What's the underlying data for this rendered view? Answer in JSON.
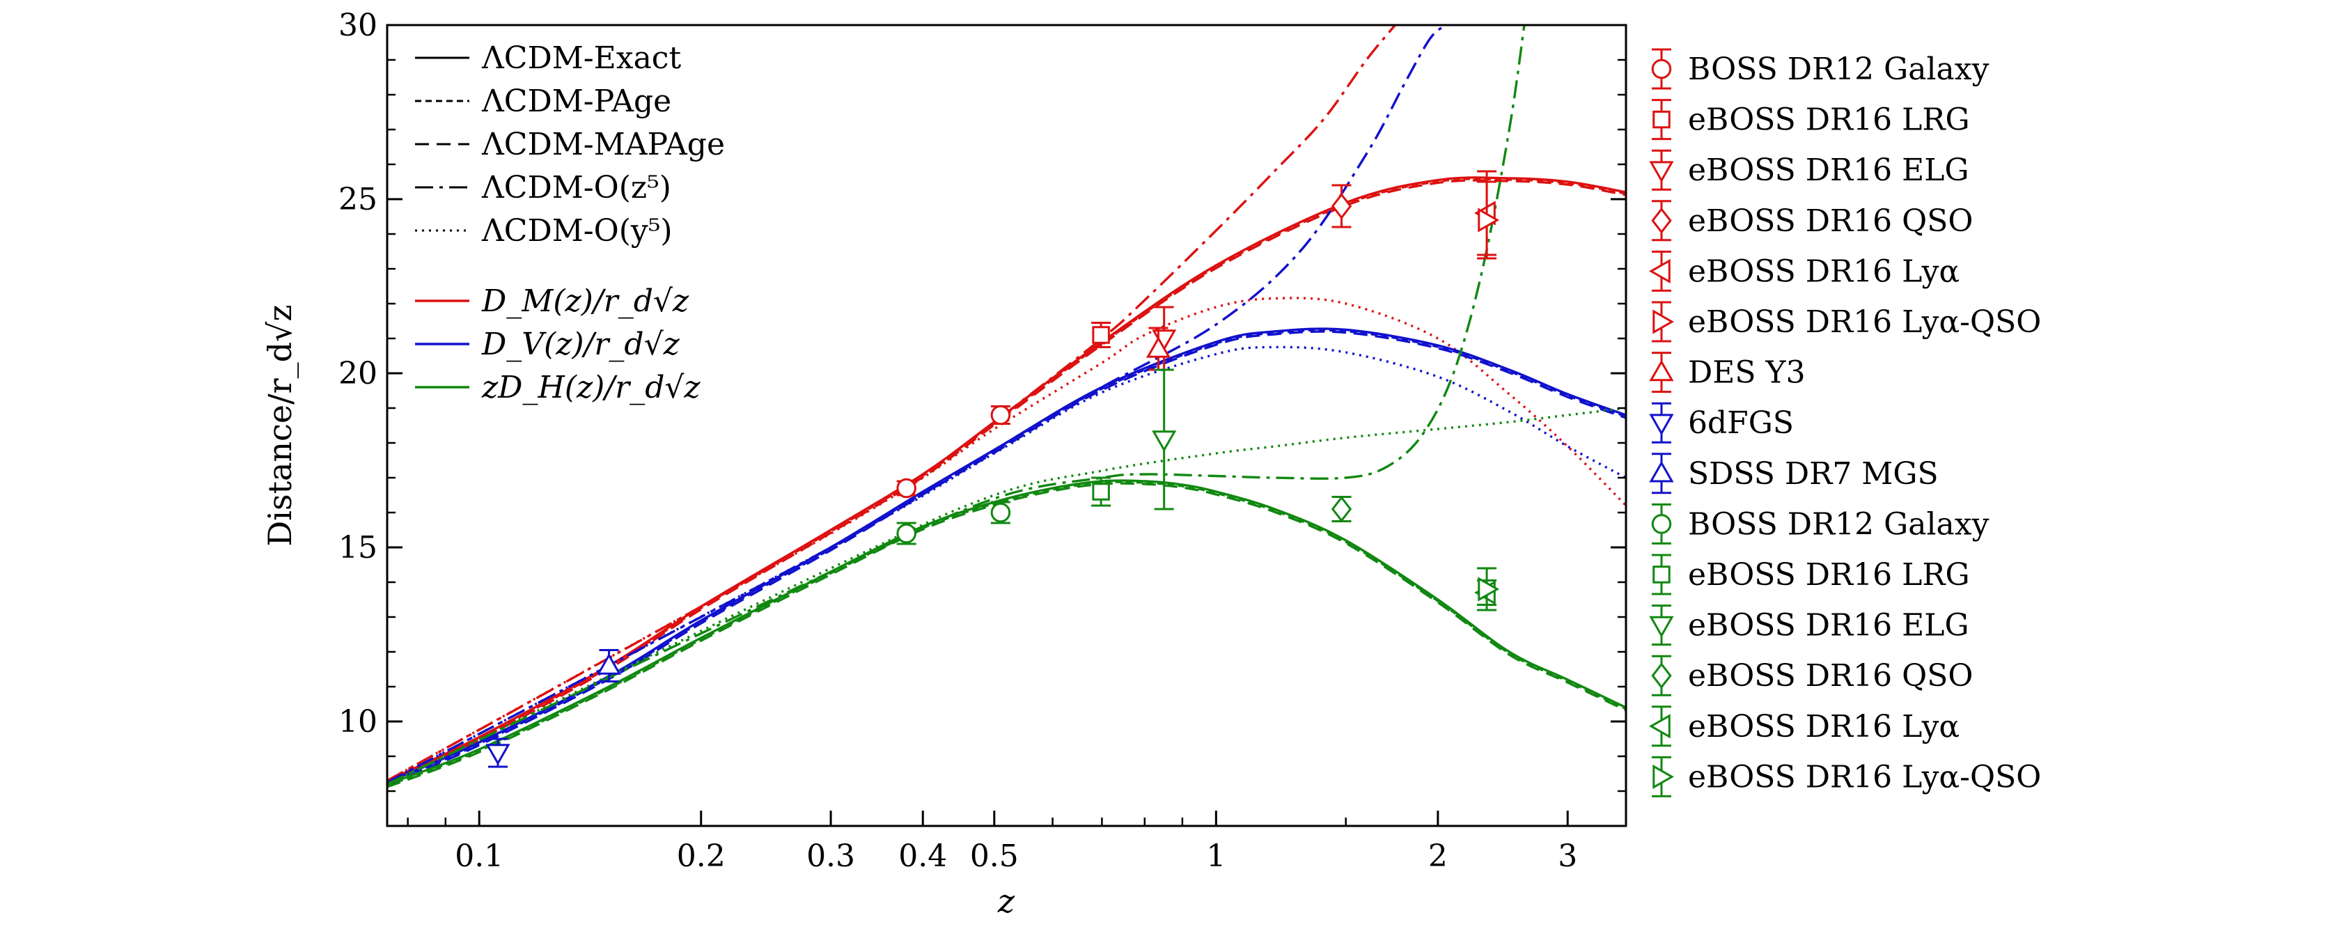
{
  "chart_data": {
    "type": "line",
    "x_scale": "log",
    "xlim": [
      0.075,
      3.6
    ],
    "ylim": [
      7,
      30
    ],
    "xlabel": "z",
    "ylabel": "Distance/r_d√z",
    "grid": false,
    "x_ticks": [
      {
        "value": 0.1,
        "label": "0.1"
      },
      {
        "value": 0.2,
        "label": "0.2"
      },
      {
        "value": 0.3,
        "label": "0.3"
      },
      {
        "value": 0.4,
        "label": "0.4"
      },
      {
        "value": 0.5,
        "label": "0.5"
      },
      {
        "value": 1,
        "label": "1"
      },
      {
        "value": 2,
        "label": "2"
      },
      {
        "value": 3,
        "label": "3"
      }
    ],
    "y_ticks": [
      {
        "value": 10,
        "label": "10"
      },
      {
        "value": 15,
        "label": "15"
      },
      {
        "value": 20,
        "label": "20"
      },
      {
        "value": 25,
        "label": "25"
      },
      {
        "value": 30,
        "label": "30"
      }
    ],
    "colors": {
      "DM": "#dd1111",
      "DV": "#1111cc",
      "DH": "#118811"
    },
    "line_style_legend": [
      {
        "label": "ΛCDM-Exact",
        "dash": "solid"
      },
      {
        "label": "ΛCDM-PAge",
        "dash": "fine-dash"
      },
      {
        "label": "ΛCDM-MAPAge",
        "dash": "dash"
      },
      {
        "label": "ΛCDM-O(z⁵)",
        "dash": "dash-dot"
      },
      {
        "label": "ΛCDM-O(y⁵)",
        "dash": "dot"
      }
    ],
    "quantity_legend": [
      {
        "key": "DM",
        "label": "D_M(z)/r_d√z"
      },
      {
        "key": "DV",
        "label": "D_V(z)/r_d√z"
      },
      {
        "key": "DH",
        "label": "zD_H(z)/r_d√z"
      }
    ],
    "series": [
      {
        "quantity": "DM",
        "model": "exact",
        "x": [
          0.075,
          0.1,
          0.15,
          0.2,
          0.3,
          0.4,
          0.5,
          0.7,
          1.0,
          1.5,
          2.0,
          2.5,
          3.0,
          3.6
        ],
        "y": [
          8.3,
          9.55,
          11.6,
          13.3,
          15.5,
          17.1,
          18.6,
          20.9,
          23.1,
          24.9,
          25.55,
          25.6,
          25.5,
          25.2
        ]
      },
      {
        "quantity": "DM",
        "model": "order-z5",
        "x": [
          0.075,
          0.2,
          0.3,
          0.4,
          0.5,
          0.7,
          0.8,
          1.0,
          1.2,
          1.4,
          1.6,
          1.75
        ],
        "y": [
          8.3,
          13.3,
          15.5,
          17.1,
          18.6,
          21.0,
          22.1,
          24.1,
          25.8,
          27.3,
          29.0,
          30.0
        ]
      },
      {
        "quantity": "DM",
        "model": "order-y5",
        "x": [
          0.075,
          0.2,
          0.3,
          0.4,
          0.5,
          0.7,
          0.8,
          1.0,
          1.2,
          1.5,
          2.0,
          2.5,
          3.0,
          3.6
        ],
        "y": [
          8.3,
          13.3,
          15.4,
          17.0,
          18.4,
          20.3,
          21.1,
          21.9,
          22.15,
          22.0,
          21.0,
          19.4,
          17.9,
          16.2
        ]
      },
      {
        "quantity": "DV",
        "model": "exact",
        "x": [
          0.075,
          0.1,
          0.15,
          0.2,
          0.3,
          0.4,
          0.5,
          0.7,
          1.0,
          1.2,
          1.5,
          2.0,
          2.5,
          3.0,
          3.6
        ],
        "y": [
          8.25,
          9.4,
          11.3,
          12.9,
          15.0,
          16.6,
          17.8,
          19.6,
          20.9,
          21.2,
          21.25,
          20.8,
          20.1,
          19.4,
          18.8
        ]
      },
      {
        "quantity": "DV",
        "model": "order-z5",
        "x": [
          0.075,
          0.3,
          0.5,
          0.7,
          1.0,
          1.3,
          1.6,
          1.8,
          1.95,
          2.05
        ],
        "y": [
          8.25,
          15.0,
          17.8,
          19.6,
          21.4,
          23.5,
          26.3,
          28.3,
          29.6,
          30.0
        ]
      },
      {
        "quantity": "DV",
        "model": "order-y5",
        "x": [
          0.075,
          0.3,
          0.5,
          0.7,
          1.0,
          1.2,
          1.5,
          2.0,
          2.5,
          3.0,
          3.6
        ],
        "y": [
          8.25,
          15.0,
          17.7,
          19.45,
          20.55,
          20.75,
          20.6,
          19.9,
          18.9,
          17.9,
          17.0
        ]
      },
      {
        "quantity": "DH",
        "model": "exact",
        "x": [
          0.075,
          0.1,
          0.15,
          0.2,
          0.3,
          0.4,
          0.5,
          0.6,
          0.7,
          0.8,
          0.9,
          1.0,
          1.2,
          1.5,
          2.0,
          2.5,
          3.0,
          3.6
        ],
        "y": [
          8.2,
          9.2,
          11.0,
          12.4,
          14.3,
          15.6,
          16.3,
          16.7,
          16.9,
          16.9,
          16.8,
          16.6,
          16.1,
          15.2,
          13.5,
          12.0,
          11.2,
          10.4
        ]
      },
      {
        "quantity": "DH",
        "model": "order-z5",
        "x": [
          0.075,
          0.3,
          0.5,
          0.7,
          0.8,
          1.0,
          1.2,
          1.5,
          1.7,
          1.9,
          2.1,
          2.3,
          2.5,
          2.62
        ],
        "y": [
          8.2,
          14.3,
          16.4,
          17.0,
          17.1,
          17.05,
          17.0,
          17.0,
          17.3,
          18.2,
          20.0,
          23.0,
          27.0,
          30.0
        ]
      },
      {
        "quantity": "DH",
        "model": "order-y5",
        "x": [
          0.075,
          0.3,
          0.5,
          0.7,
          1.0,
          1.2,
          1.5,
          2.0,
          2.5,
          3.0,
          3.6
        ],
        "y": [
          8.2,
          14.4,
          16.5,
          17.2,
          17.7,
          17.9,
          18.15,
          18.4,
          18.6,
          18.8,
          19.0
        ]
      }
    ],
    "points": [
      {
        "survey": "BOSS DR12 Galaxy",
        "quantity": "DM",
        "marker": "circle",
        "x": 0.38,
        "y": 16.7,
        "err": 0.2
      },
      {
        "survey": "BOSS DR12 Galaxy",
        "quantity": "DM",
        "marker": "circle",
        "x": 0.51,
        "y": 18.8,
        "err": 0.25
      },
      {
        "survey": "eBOSS DR16 LRG",
        "quantity": "DM",
        "marker": "square",
        "x": 0.698,
        "y": 21.1,
        "err": 0.35
      },
      {
        "survey": "eBOSS DR16 ELG",
        "quantity": "DM",
        "marker": "triangle-down",
        "x": 0.85,
        "y": 21.0,
        "err": 0.9
      },
      {
        "survey": "eBOSS DR16 QSO",
        "quantity": "DM",
        "marker": "diamond",
        "x": 1.48,
        "y": 24.8,
        "err": 0.6
      },
      {
        "survey": "eBOSS DR16 Lyα",
        "quantity": "DM",
        "marker": "triangle-left",
        "x": 2.33,
        "y": 24.6,
        "err": 1.2
      },
      {
        "survey": "eBOSS DR16 Lyα-QSO",
        "quantity": "DM",
        "marker": "triangle-right",
        "x": 2.33,
        "y": 24.4,
        "err": 1.1
      },
      {
        "survey": "DES Y3",
        "quantity": "DM",
        "marker": "triangle-up",
        "x": 0.835,
        "y": 20.7,
        "err": 0.6
      },
      {
        "survey": "6dFGS",
        "quantity": "DV",
        "marker": "triangle-down",
        "x": 0.106,
        "y": 9.1,
        "err": 0.4
      },
      {
        "survey": "SDSS DR7 MGS",
        "quantity": "DV",
        "marker": "triangle-up",
        "x": 0.15,
        "y": 11.6,
        "err": 0.45
      },
      {
        "survey": "BOSS DR12 Galaxy",
        "quantity": "DH",
        "marker": "circle",
        "x": 0.38,
        "y": 15.4,
        "err": 0.3
      },
      {
        "survey": "BOSS DR12 Galaxy",
        "quantity": "DH",
        "marker": "circle",
        "x": 0.51,
        "y": 16.0,
        "err": 0.3
      },
      {
        "survey": "eBOSS DR16 LRG",
        "quantity": "DH",
        "marker": "square",
        "x": 0.698,
        "y": 16.6,
        "err": 0.4
      },
      {
        "survey": "eBOSS DR16 ELG",
        "quantity": "DH",
        "marker": "triangle-down",
        "x": 0.85,
        "y": 18.1,
        "err": 2.0
      },
      {
        "survey": "eBOSS DR16 QSO",
        "quantity": "DH",
        "marker": "diamond",
        "x": 1.48,
        "y": 16.1,
        "err": 0.35
      },
      {
        "survey": "eBOSS DR16 Lyα",
        "quantity": "DH",
        "marker": "triangle-left",
        "x": 2.33,
        "y": 13.7,
        "err": 0.35
      },
      {
        "survey": "eBOSS DR16 Lyα-QSO",
        "quantity": "DH",
        "marker": "triangle-right",
        "x": 2.33,
        "y": 13.8,
        "err": 0.6
      }
    ],
    "survey_legend": [
      {
        "label": "BOSS DR12 Galaxy",
        "marker": "circle",
        "quantity": "DM"
      },
      {
        "label": "eBOSS DR16 LRG",
        "marker": "square",
        "quantity": "DM"
      },
      {
        "label": "eBOSS DR16 ELG",
        "marker": "triangle-down",
        "quantity": "DM"
      },
      {
        "label": "eBOSS DR16 QSO",
        "marker": "diamond",
        "quantity": "DM"
      },
      {
        "label": "eBOSS DR16 Lyα",
        "marker": "triangle-left",
        "quantity": "DM"
      },
      {
        "label": "eBOSS DR16 Lyα-QSO",
        "marker": "triangle-right",
        "quantity": "DM"
      },
      {
        "label": "DES Y3",
        "marker": "triangle-up",
        "quantity": "DM"
      },
      {
        "label": "6dFGS",
        "marker": "triangle-down",
        "quantity": "DV"
      },
      {
        "label": "SDSS DR7 MGS",
        "marker": "triangle-up",
        "quantity": "DV"
      },
      {
        "label": "BOSS DR12 Galaxy",
        "marker": "circle",
        "quantity": "DH"
      },
      {
        "label": "eBOSS DR16 LRG",
        "marker": "square",
        "quantity": "DH"
      },
      {
        "label": "eBOSS DR16 ELG",
        "marker": "triangle-down",
        "quantity": "DH"
      },
      {
        "label": "eBOSS DR16 QSO",
        "marker": "diamond",
        "quantity": "DH"
      },
      {
        "label": "eBOSS DR16 Lyα",
        "marker": "triangle-left",
        "quantity": "DH"
      },
      {
        "label": "eBOSS DR16 Lyα-QSO",
        "marker": "triangle-right",
        "quantity": "DH"
      }
    ]
  }
}
